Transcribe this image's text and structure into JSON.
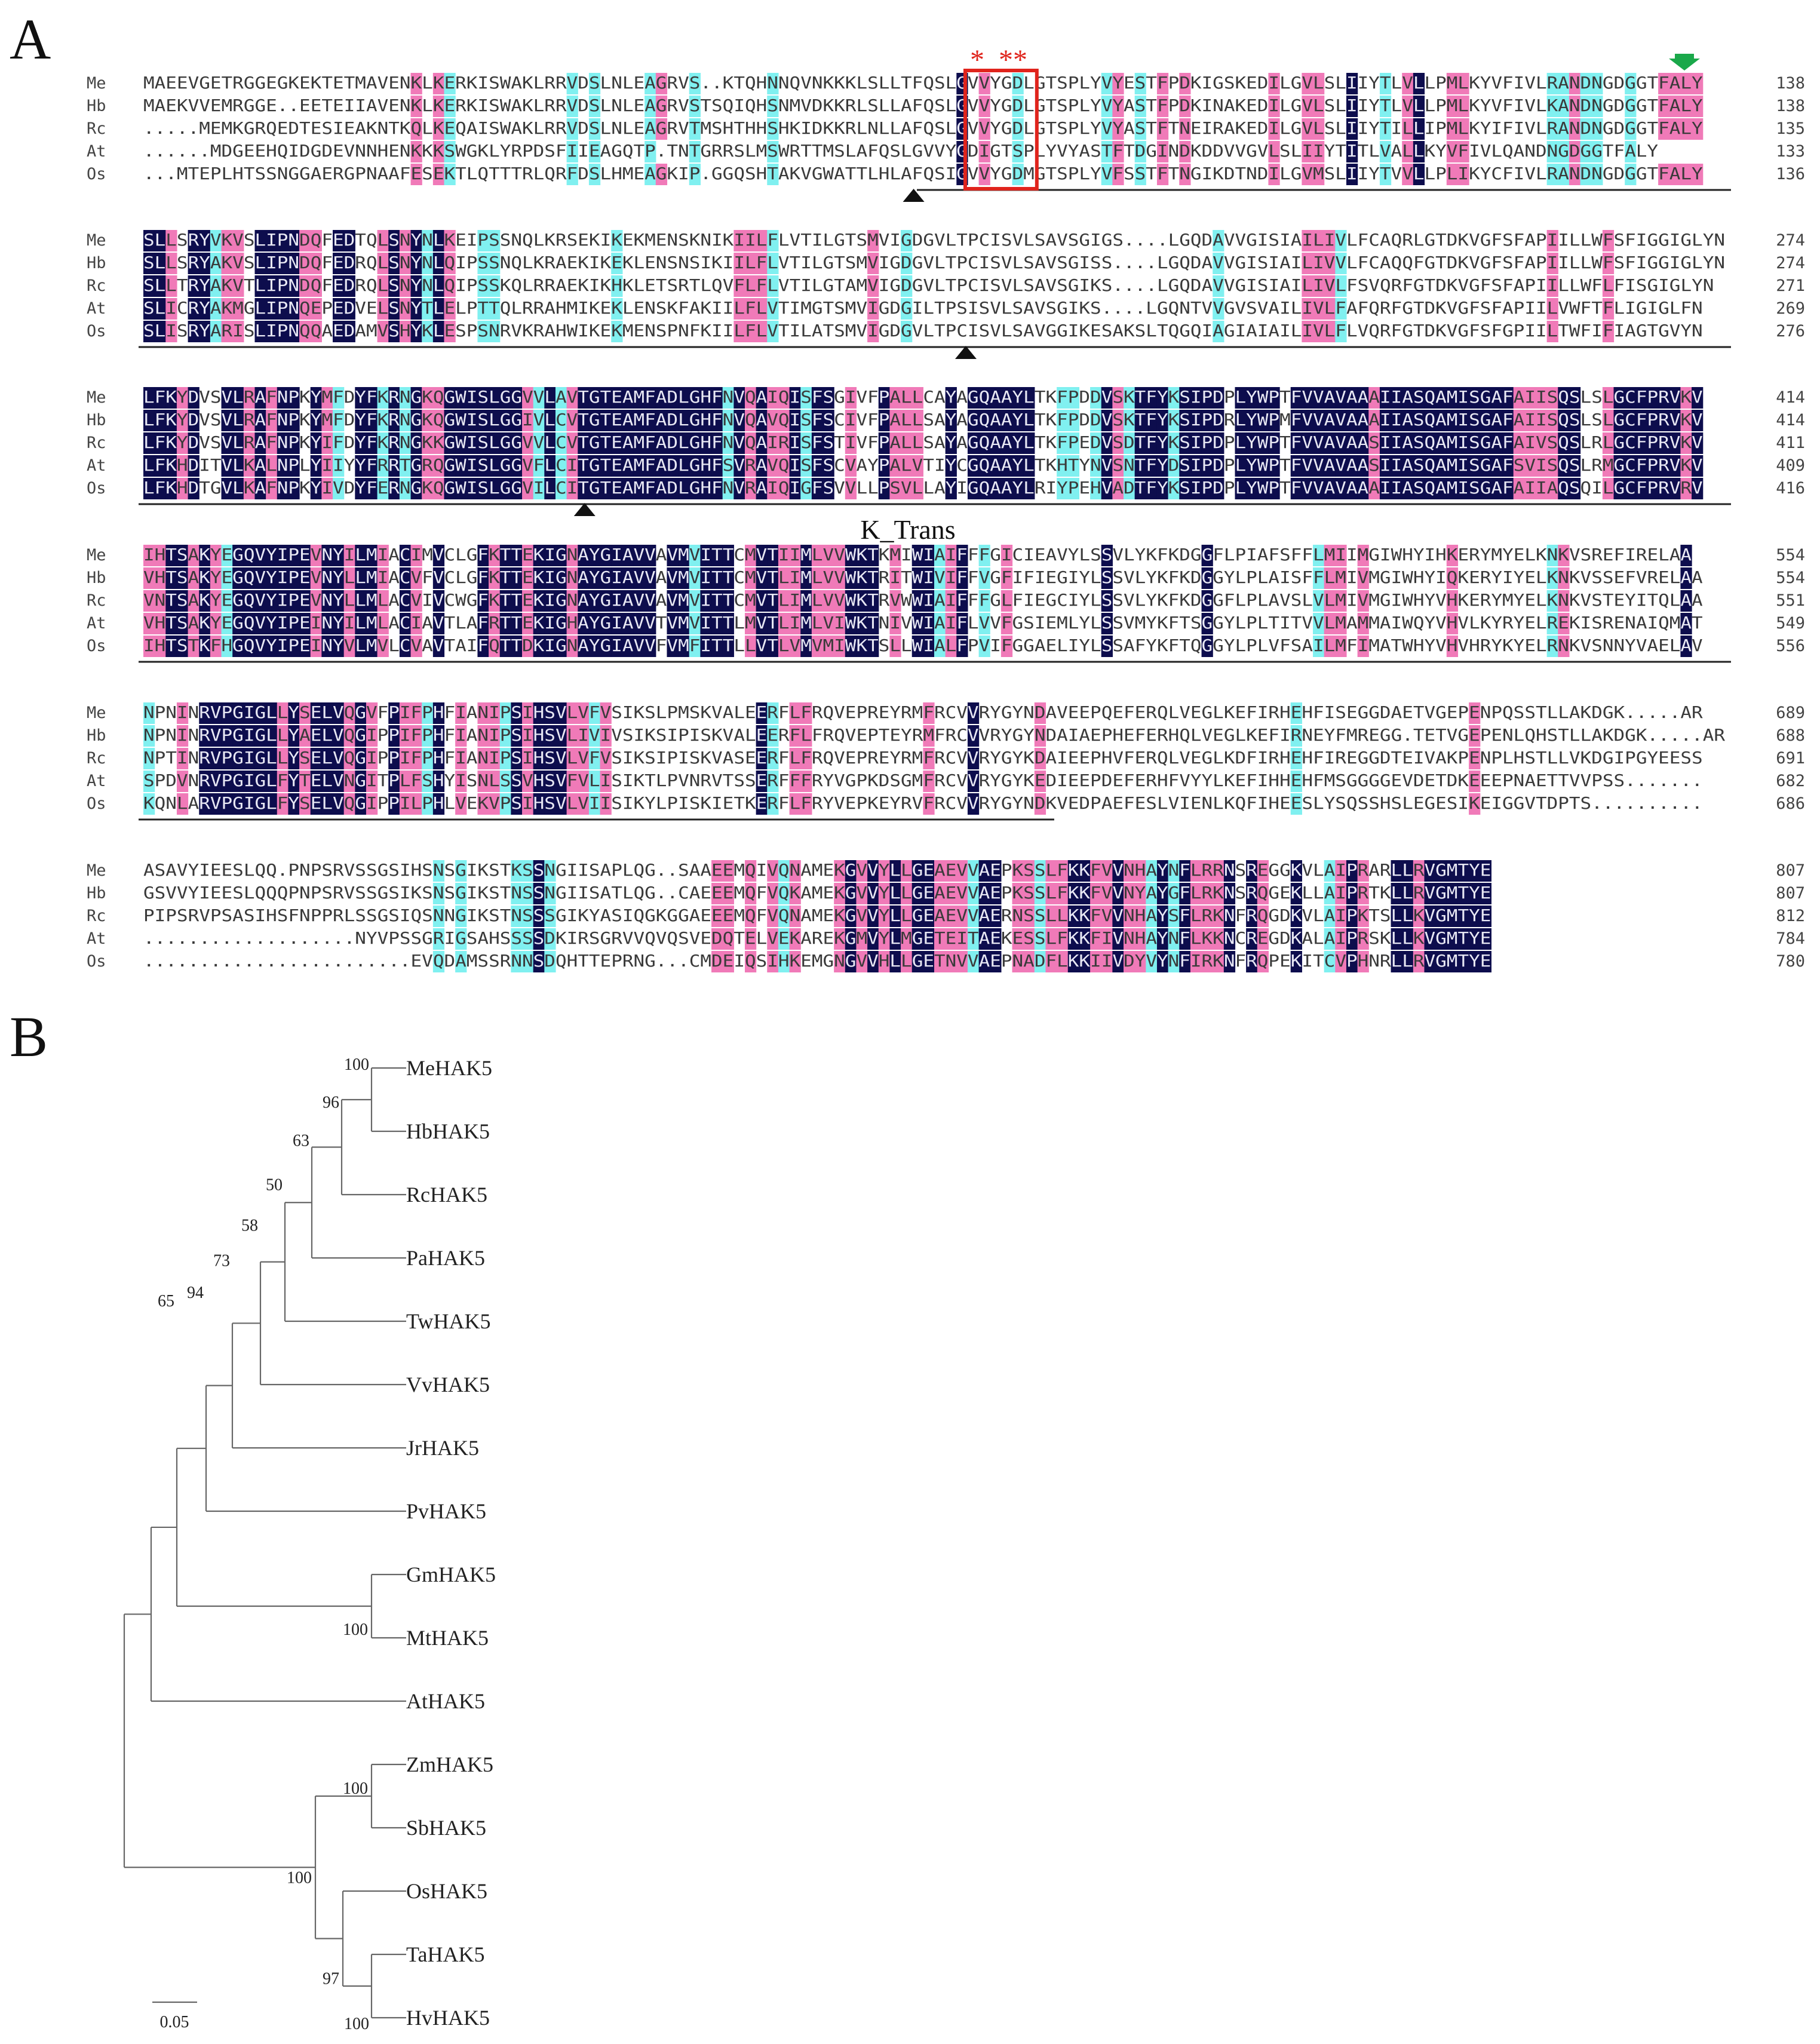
{
  "panels": {
    "a": "A",
    "b": "B"
  },
  "colors": {
    "identical": "#0d0d4d",
    "high": "#f07ab8",
    "medium": "#80f0f0",
    "box": "#e0241c",
    "arrow": "#1aa84a",
    "highlight_taxon": "#c0392b"
  },
  "blocks": [
    {
      "ends": [
        138,
        138,
        135,
        133,
        136
      ],
      "underline": "full",
      "triangles_at": [
        0.487
      ],
      "star": "*  **",
      "box": true,
      "green_arrow": true,
      "rows": [
        {
          "name": "Me",
          "seq": "MAEEVGETRGGEGKEKTETMAVENKLKERKISWAKLRRVDSLNLEAGRVS..KTQHNNQVNKKKLSLLTFQSLGVVYGDLGTSPLYVYESTFPDKIGSKEDILGVLSLIIYTLVLLPMLKYVFIVLRANDNGDGGTFALY"
        },
        {
          "name": "Hb",
          "seq": "MAEKVVEMRGGE..EETEIIAVENKLKERKISWAKLRRVDSLNLEAGRVSTSQIQHSNMVDKKRLSLLAFQSLGVVYGDLGTSPLYVYASTFPDKINAKEDILGVLSLIIYTLVLLPMLKYVFIVLKANDNGDGGTFALY"
        },
        {
          "name": "Rc",
          "seq": ".....MEMKGRQEDTESIEAKNTKQLKEQAISWAKLRRVDSLNLEAGRVTMSHTHHSHKIDKKRLNLLAFQSLGVVYGDLGTSPLYVYASTFTNEIRAKEDILGVLSLIIYTILLIPMLKYIFIVLRANDNGDGGTFALY"
        },
        {
          "name": "At",
          "seq": "......MDGEEHQIDGDEVNNHENKKKSWGKLYRPDSFIIEAGQTP.TNTGRRSLMSWRTTMSLAFQSLGVVYGDIGTSPLYVYASTFTDGINDKDDVVGVLSLIIYTITLVALLKYVFIVLQANDNGDGGTFALY"
        },
        {
          "name": "Os",
          "seq": "...MTEPLHTSSNGGAERGPNAAFESEKTLQTTTRLQRFDSLHMEAGKIP.GGQSHTAKVGWATTLHLAFQSIGVVYGDMGTSPLYVFSSTFTNGIKDTNDILGVMSLIIYTVVLLPLIKYCFIVLRANDNGDGGTFALY"
        }
      ]
    },
    {
      "ends": [
        274,
        274,
        271,
        269,
        276
      ],
      "underline": "full",
      "triangles_at": [
        0.52
      ],
      "star": "",
      "box": false,
      "green_arrow": false,
      "rows": [
        {
          "name": "Me",
          "seq": "SLLSRYVKVSLIPNDQFEDTQLSNYNLKEIPSSNQLKRSEKIKEKMENSKNIKIILFLVTILGTSMVIGDGVLTPCISVLSAVSGIGS....LGQDAVVGISIAILIVLFCAQRLGTDKVGFSFAPIILLWFSFIGGIGLYN"
        },
        {
          "name": "Hb",
          "seq": "SLLSRYAKVSLIPNDQFEDRQLSNYNLQIPSSNQLKRAEKIKEKLENSNSIKIILFLVTILGTSMVIGDGVLTPCISVLSAVSGISS....LGQDAVVGISIAILIVVLFCAQQFGTDKVGFSFAPIILLWFSFIGGIGLYN"
        },
        {
          "name": "Rc",
          "seq": "SLLTRYAKVTLIPNDQFEDRQLSNYNLQIPSSKQLRRAEKIKHKLETSRTLQVFLFLVTILGTAMVIGDGVLTPCISVLSAVSGIKS....LGQDAVVGISIAILIVLFSVQRFGTDKVGFSFAPIILLWFLFISGIGLYN"
        },
        {
          "name": "At",
          "seq": "SLICRYAKMGLIPNQEPEDVELSNYTLELPTTQLRRAHMIKEKLENSKFAKIILFLVTIMGTSMVIGDGILTPSISVLSAVSGIKS....LGQNTVVGVSVAILIVLFAFQRFGTDKVGFSFAPIILVWFTFLIGIGLFN"
        },
        {
          "name": "Os",
          "seq": "SLISRYARISLIPNQQAEDAMVSHYKLESPSNRVKRAHWIKEKMENSPNFKIILFLVTILATSMVIGDGVLTPCISVLSAVGGIKESAKSLTQGQIAGIAIAILIVLFLVQRFGTDKVGFSFGPIILTWFIFIAGTGVYN"
        }
      ]
    },
    {
      "ends": [
        414,
        414,
        411,
        409,
        416
      ],
      "underline": "full",
      "triangles_at": [
        0.279
      ],
      "star": "",
      "box": false,
      "green_arrow": false,
      "domain_label": "K_Trans",
      "rows": [
        {
          "name": "Me",
          "seq": "LFKYDVSVLRAFNPKYMFDYFKRNGKQGWISLGGVVLAVTGTEAMFADLGHFNVQAIQISFSGIVFPALLCAYAGQAAYLTKFPDDVSKTFYKSIPDPLYWPTFVVAVAAAIIASQAMISGAFAIISQSLSLGCFPRVKV"
        },
        {
          "name": "Hb",
          "seq": "LFKYDVSVLRAFNPKYMFDYFKRNGKQGWISLGGIVLCVTGTEAMFADLGHFNVQAVQISFSCIVFPALLSAYAGQAAYLTKFPDDVSKTFYKSIPDRLYWPMFVVAVAAAIIASQAMISGAFAIISQSLSLGCFPRVKV"
        },
        {
          "name": "Rc",
          "seq": "LFKYDVSVLRAFNPKYIFDYFKRNGKKGWISLGGVVLCVTGTEAMFADLGHFNVQAIRISFSTIVFPALLSAYAGQAAYLTKFPEDVSDTFYKSIPDPLYWPTFVVAVAASIIASQAMISGAFAIVSQSLRLGCFPRVKV"
        },
        {
          "name": "At",
          "seq": "LFKHDITVLKALNPLYIIYYFRRTGRQGWISLGGVFLCITGTEAMFADLGHFSVRAVQISFSCVAYPALVTIYCGQAAYLTKHTYNVSNTFYDSIPDPLYWPTFVVAVAASIIASQAMISGAFSVISQSLRMGCFPRVKV"
        },
        {
          "name": "Os",
          "seq": "LFKHDTGVLKAFNPKYIVDYFERNGKQGWISLGGVILCITGTEAMFADLGHFNVRAIQIGFSVVLLPSVLLAYIGQAAYLRIYPEHVADTFYKSIPDPLYWPTFVVAVAAAIIASQAMISGAFAIIAQSQILGCFPRVRV"
        }
      ]
    },
    {
      "ends": [
        554,
        554,
        551,
        549,
        556
      ],
      "underline": "full",
      "triangles_at": [],
      "star": "",
      "box": false,
      "green_arrow": false,
      "rows": [
        {
          "name": "Me",
          "seq": "IHTSAKYEGQVYIPEVNYILMIACIMVCLGFKTTEKIGNAYGIAVVAVMVITTCMVTIIMLVVWKTKMIWIAIFFFGICIEAVYLSSVLYKFKDGGFLPIAFSFFLMIIMGIWHYIHKERYMYELKNKVSREFIRELAA"
        },
        {
          "name": "Hb",
          "seq": "VHTSAKYEGQVYIPEVNYLLMIACVFVCLGFKTTEKIGNAYGIAVVAVMVITTCMVTLIMLVVWKTRITWIVIFFVGFIFIEGIYLSSVLYKFKDGGYLPLAISFFLMIVMGIWHYIQKERYIYELKNKVSSEFVRELAA"
        },
        {
          "name": "Rc",
          "seq": "VNTSAKYEGQVYIPEVNYLLMLACVIVCWGFKTTEKIGNAYGIAVVAVMVITTCMVTLIMLVVWKTRVWWIAIFFFGLFIEGCIYLSSVLYKFKDGGFLPLAVSLVLMIVMGIWHYVHKERYMYELKNKVSTEYITQLAA"
        },
        {
          "name": "At",
          "seq": "VHTSAKYEGQVYIPEINYILMLACIAVTLAFRTTEKIGHAYGIAVVTVMVITTLMVTLIMLVIWKTNIVWIAIFLVVFGSIEMLYLSSVMYKFTSGGYLPLTITVVLMAMMAIWQYVHVLKYRYELREKISRENAIQMAT"
        },
        {
          "name": "Os",
          "seq": "IHTSTKFHGQVYIPEINYVLMVLCVAVTAIFQTTDKIGNAYGIAVVFVMFITTLLVTLVMVMIWKTSLLWIALFPVIFGGAELIYLSSAFYKFTQGGYLPLVFSAILMFIMATWHYVHVHRYKYELRNKVSNNYVAELAV"
        }
      ]
    },
    {
      "ends": [
        689,
        688,
        691,
        682,
        686
      ],
      "underline": "partial",
      "underline_frac": 0.575,
      "triangles_at": [],
      "star": "",
      "box": false,
      "green_arrow": false,
      "rows": [
        {
          "name": "Me",
          "seq": "NPNINRVPGIGLLYSELVQGVFPIFPHFIANIPSIHSVLVFVSIKSLPMSKVALEERFLFRQVEPREYRMFRCVVRYGYNDAVEEPQEFERQLVEGLKEFIRHEHFISEGGDAETVGEPENPQSSTLLAKDGK.....AR"
        },
        {
          "name": "Hb",
          "seq": "NPNINRVPGIGLLYAELVQGIPPIFPHFIANIPSIHSVLIVIVSIKSIPISKVALEERFLFRQVEPTEYRMFRCVVRYGYNDAIAEPHEFERHQLVEGLKEFIRNEYFMREGG.TETVGEPENLQHSTLLAKDGK.....AR"
        },
        {
          "name": "Rc",
          "seq": "NPTINRVPGIGLLYSELVQGIPPIFPHFIANIPSIHSVLVFVSIKSIPISKVASEERFLFRQVEPREYRMFRCVVRYGYKDAIEEPHVFERQLVEGLKDFIRHEHFIREGGDTEIVAKPENPLHSTLLVKDGIPGYEESS"
        },
        {
          "name": "At",
          "seq": "SPDVNRVPGIGLFYTELVNGITPLFSHYISNLSSVHSVFVLISIKTLPVNRVTSSERFFFRYVGPKDSGMFRCVVRYGYKEDIEEPDEFERHFVYYLKEFIHHEHFMSGGGGEVDETDKEEEPNAETTVVPSS......."
        },
        {
          "name": "Os",
          "seq": "KQNLARVPGIGLFYSELVQGIPPILPHLVEKVPSIHSVLVIISIKYLPISKIETKERFLFRYVEPKEYRVFRCVVRYGYNDKVEDPAEFESLVIENLKQFIHEESLYSQSSHSLEGESIKEIGGVTDPTS.........."
        }
      ]
    },
    {
      "ends": [
        807,
        807,
        812,
        784,
        780
      ],
      "underline": "none",
      "triangles_at": [],
      "star": "",
      "box": false,
      "green_arrow": false,
      "rows": [
        {
          "name": "Me",
          "seq": "ASAVYIEESLQQ.PNPSRVSSGSIHSNSGIKSTKSSNGIISAPLQG..SAAEEMQIVQNAMEKGVVYLLGEAEVVAEPKSSLFKKFVVNHAYNFLRRNSREGGKVLAIPRARLLRVGMTYE"
        },
        {
          "name": "Hb",
          "seq": "GSVVYIEESLQQQPNPSRVSSGSIKSNSGIKSTNSSNGIISATLQG..CAEEEMQFVQKAMEKGVVYLLGEAEVVAEPKSSLFKKFVVNYAYGFLRKNSRQGEKLLAIPRTKLLRVGMTYE"
        },
        {
          "name": "Rc",
          "seq": "PIPSRVPSASIHSFNPPRLSSGSIQSNNGIKSTNSSSGIKYASIQGKGGAEEEMQFVQNAMEKGVVYLLGEAEVVAERNSSLLKKFVVNHAYSFLRKNFRQGDKVLAIPKTSLLKVGMTYE"
        },
        {
          "name": "At",
          "seq": "...................NYVPSSGRIGSAHSSSSDKIRSGRVVQVQSVEDQTELVEKAREKGMVYLMGETEITAEKESSLFKKFIVNHAYNFLKKNCREGDKALAIPRSKLLKVGMTYE"
        },
        {
          "name": "Os",
          "seq": "........................EVQDAMSSRNNSDQHTTEPRNG...CMDEIQSIHKEMGNGVVHLLGETNVVAEPNADFLKKIIVDYVYNFIRKNFRQPEKITCVPHNRLLRVGMTYE"
        }
      ]
    }
  ],
  "tree": {
    "taxa": [
      "MeHAK5",
      "HbHAK5",
      "RcHAK5",
      "PaHAK5",
      "TwHAK5",
      "VvHAK5",
      "JrHAK5",
      "PvHAK5",
      "GmHAK5",
      "MtHAK5",
      "AtHAK5",
      "ZmHAK5",
      "SbHAK5",
      "OsHAK5",
      "TaHAK5",
      "HvHAK5"
    ],
    "bootstraps": {
      "me_hb": "100",
      "me_rc": "96",
      "me_pa": "63",
      "me_tw": "50",
      "me_vv": "58",
      "me_jr": "73",
      "me_pv": "94",
      "eudicot": "65",
      "gm_mt": "100",
      "zm_sb": "100",
      "monocot": "100",
      "os_ta": "97",
      "ta_hv": "100"
    },
    "scale": "0.05"
  }
}
